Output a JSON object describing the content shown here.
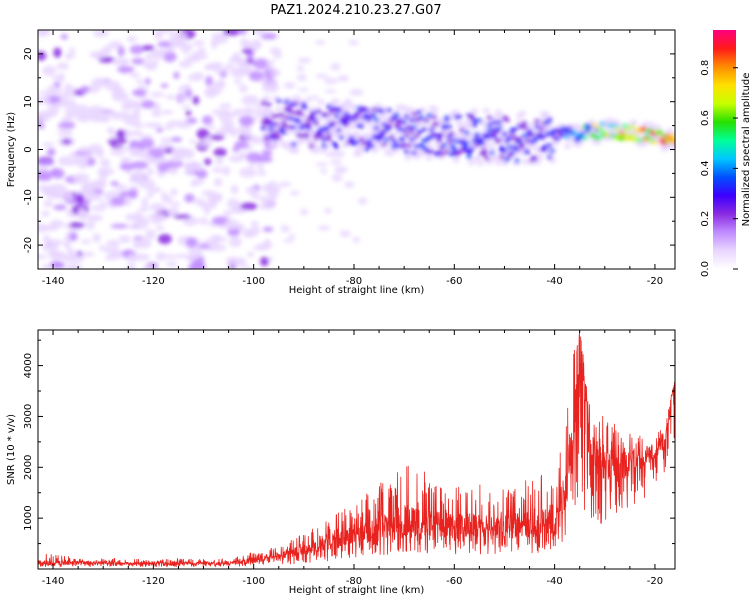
{
  "figure_title": "PAZ1.2024.210.23.27.G07",
  "colors": {
    "snr_line": "#e8231f",
    "axis": "#000000",
    "colormap": [
      "#ffffff",
      "#e9d6ff",
      "#c08cff",
      "#8a2be2",
      "#3c00ff",
      "#0050ff",
      "#00c8ff",
      "#00ff96",
      "#28e000",
      "#c8ff00",
      "#ffe000",
      "#ff8c00",
      "#ff1a1a",
      "#ff0080"
    ]
  },
  "chart_data": [
    {
      "type": "heatmap",
      "title": "PAZ1.2024.210.23.27.G07",
      "xlabel": "Height of straight line (km)",
      "ylabel": "Frequency (Hz)",
      "xlim": [
        -143,
        -16
      ],
      "ylim": [
        -25,
        25
      ],
      "x_ticks": [
        -140,
        -120,
        -100,
        -80,
        -60,
        -40,
        -20
      ],
      "y_ticks": [
        -20,
        -10,
        0,
        10,
        20
      ],
      "colorbar": {
        "label": "Normalized spectral amplitude",
        "range": [
          0,
          0.95
        ],
        "ticks": [
          0.0,
          0.2,
          0.4,
          0.6,
          0.8
        ]
      },
      "features": [
        {
          "description_x": [
            -143,
            -100
          ],
          "frequency_center": 0,
          "frequency_spread": 25,
          "amplitude": 0.12
        },
        {
          "x": [
            -97,
            -75,
            -60,
            -45,
            -38,
            -30,
            -20,
            -16
          ],
          "frequency": [
            6,
            4,
            3,
            2,
            3,
            4,
            3,
            2
          ],
          "amplitude": [
            0.25,
            0.28,
            0.3,
            0.3,
            0.32,
            0.7,
            0.85,
            0.9
          ]
        }
      ]
    },
    {
      "type": "line",
      "xlabel": "Height of straight line (km)",
      "ylabel": "SNR (10 * v/v)",
      "xlim": [
        -143,
        -16
      ],
      "ylim": [
        0,
        4700
      ],
      "x_ticks": [
        -140,
        -120,
        -100,
        -80,
        -60,
        -40,
        -20
      ],
      "y_ticks": [
        1000,
        2000,
        3000,
        4000
      ],
      "series": [
        {
          "x": [
            -143,
            -135,
            -125,
            -115,
            -105,
            -100,
            -95,
            -90,
            -85,
            -80,
            -75,
            -70,
            -65,
            -60,
            -55,
            -50,
            -45,
            -40,
            -38,
            -36,
            -35,
            -33,
            -30,
            -25,
            -22,
            -20,
            -18,
            -16
          ],
          "y": [
            120,
            130,
            110,
            115,
            120,
            170,
            250,
            380,
            500,
            700,
            800,
            950,
            900,
            850,
            850,
            850,
            850,
            900,
            1500,
            3000,
            4700,
            2300,
            2000,
            2100,
            2200,
            2300,
            2600,
            3700
          ],
          "envelope_low": [
            40,
            40,
            40,
            40,
            40,
            60,
            80,
            100,
            150,
            200,
            250,
            300,
            300,
            280,
            280,
            280,
            300,
            300,
            400,
            1200,
            900,
            800,
            900,
            1100,
            1400,
            1700,
            1900,
            2500
          ],
          "envelope_high": [
            320,
            230,
            200,
            200,
            200,
            350,
            450,
            700,
            1000,
            1300,
            1700,
            2100,
            1900,
            1700,
            1700,
            1650,
            1900,
            2000,
            2700,
            4500,
            4700,
            3300,
            3000,
            2700,
            2600,
            2600,
            2900,
            3700
          ]
        }
      ]
    }
  ]
}
